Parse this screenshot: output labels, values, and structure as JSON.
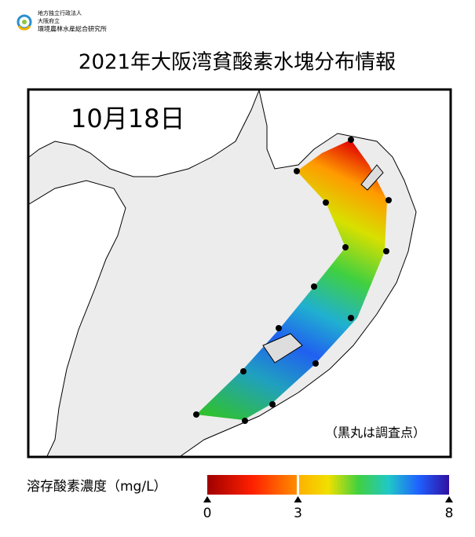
{
  "header": {
    "org_lines": [
      "地方独立行政法人",
      "大阪府立",
      "環境農林水産総合研究所"
    ]
  },
  "title": "2021年大阪湾貧酸素水塊分布情報",
  "map": {
    "date": "10月18日",
    "note": "（黒丸は調査点）"
  },
  "colorbar": {
    "label": "溶存酸素濃度（mg/L）",
    "range": [
      0,
      8
    ],
    "ticks": [
      0,
      3,
      8
    ]
  }
}
